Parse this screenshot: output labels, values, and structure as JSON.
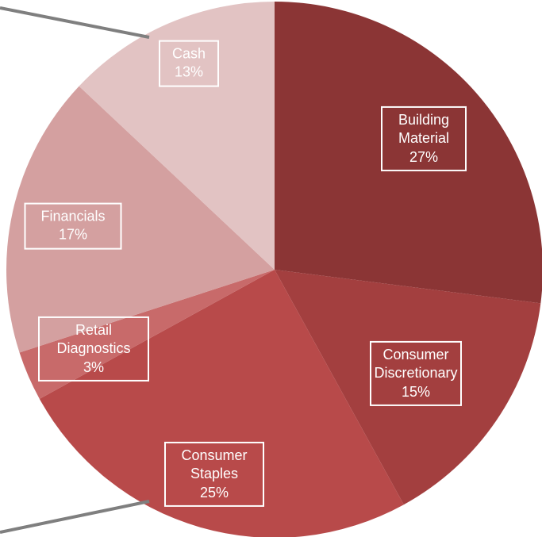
{
  "chart_data": {
    "type": "pie",
    "categories": [
      "Building Material",
      "Consumer Discretionary",
      "Consumer Staples",
      "Retail Diagnostics",
      "Financials",
      "Cash"
    ],
    "values": [
      27,
      15,
      25,
      3,
      17,
      13
    ],
    "value_labels": [
      "27%",
      "15%",
      "25%",
      "3%",
      "17%",
      "13%"
    ],
    "colors": [
      "#8b3535",
      "#a33f3f",
      "#b84a4a",
      "#c86a6a",
      "#d4a0a0",
      "#e2c3c3"
    ]
  }
}
